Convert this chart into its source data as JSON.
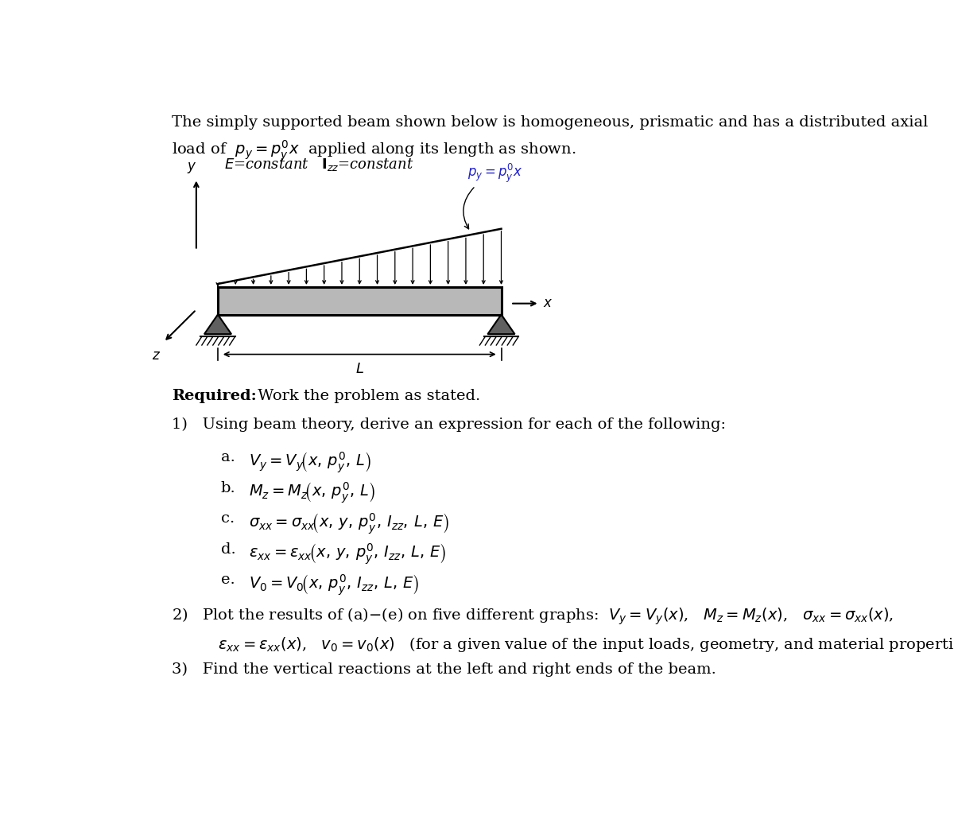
{
  "bg_color": "#ffffff",
  "fig_width": 12.0,
  "fig_height": 10.5,
  "dpi": 100,
  "xlim": [
    0,
    12
  ],
  "ylim": [
    0,
    10.5
  ],
  "fs_body": 14,
  "fs_diagram": 12,
  "beam_x0": 1.6,
  "beam_x1": 6.2,
  "beam_y0": 7.0,
  "beam_y1": 7.45,
  "beam_color": "#b8b8b8",
  "n_load_arrows": 17,
  "max_load_height": 0.95,
  "min_load_height": 0.05
}
